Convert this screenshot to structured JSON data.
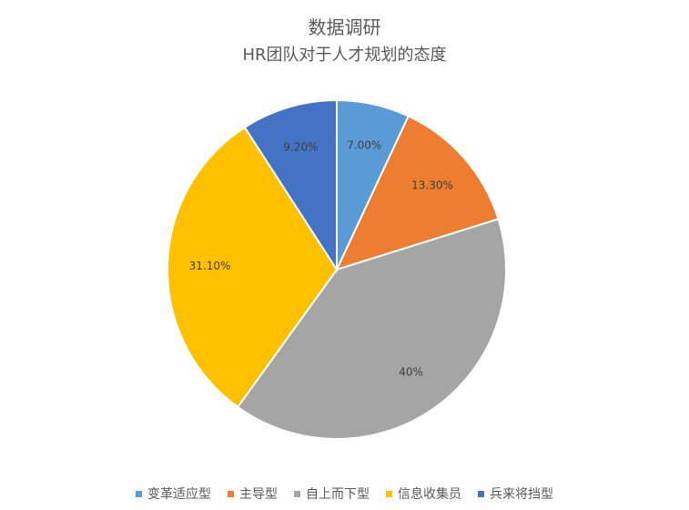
{
  "chart_data": {
    "type": "pie",
    "title": "数据调研",
    "subtitle": "HR团队对于人才规划的态度",
    "legend_position": "bottom",
    "slices": [
      {
        "name": "变革适应型",
        "value": 7.0,
        "label": "7.00%",
        "color": "#5B9BD5"
      },
      {
        "name": "主导型",
        "value": 13.3,
        "label": "13.30%",
        "color": "#ED7D31"
      },
      {
        "name": "自上而下型",
        "value": 40.0,
        "label": "40%",
        "color": "#A5A5A5"
      },
      {
        "name": "信息收集员",
        "value": 31.1,
        "label": "31.10%",
        "color": "#FFC000"
      },
      {
        "name": "兵来将挡型",
        "value": 9.2,
        "label": "9.20%",
        "color": "#4472C4"
      }
    ]
  }
}
